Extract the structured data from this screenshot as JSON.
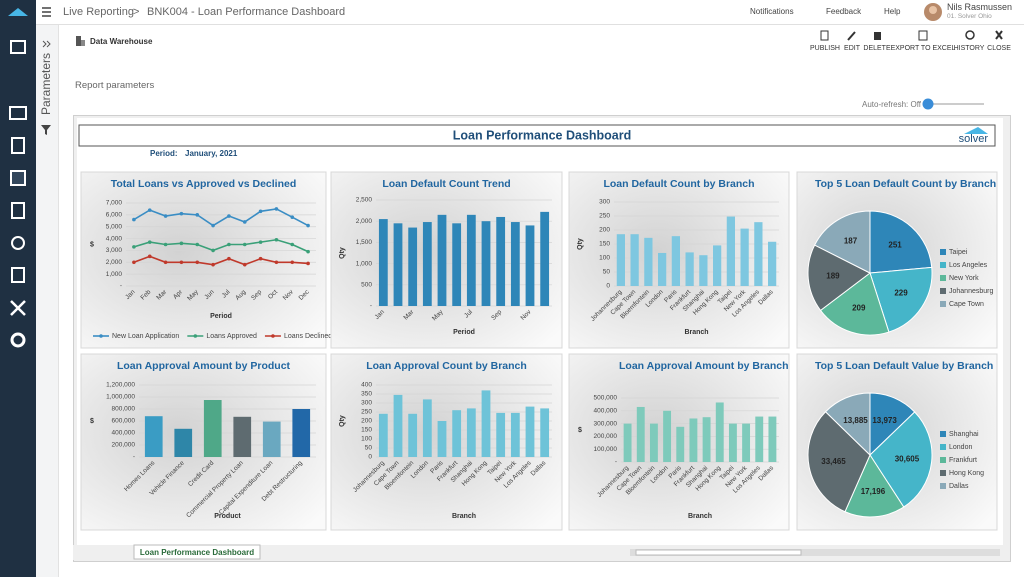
{
  "app": {
    "breadcrumb": [
      "Live Reporting",
      ">",
      "BNK004 - Loan Performance Dashboard"
    ],
    "notifications": "Notifications",
    "feedback": "Feedback",
    "help": "Help",
    "user_name": "Nils Rasmussen",
    "user_org": "01. Solver Ohio",
    "side_panel": "Parameters",
    "data_source": "Data Warehouse",
    "report_parameters": "Report parameters",
    "auto_refresh": "Auto-refresh: Off",
    "toolbar": [
      "PUBLISH",
      "EDIT",
      "DELETE",
      "EXPORT TO EXCEL",
      "HISTORY",
      "CLOSE"
    ],
    "dashboard_title": "Loan Performance Dashboard",
    "period_label": "Period:",
    "period_value": "January, 2021",
    "logo": "solver",
    "sheet_tab": "Loan Performance Dashboard"
  },
  "chart_data": [
    {
      "type": "line",
      "title": "Total Loans vs Approved vs Declined",
      "x_label": "Period",
      "y_label": "$",
      "categories": [
        "Jan",
        "Feb",
        "Mar",
        "Apr",
        "May",
        "Jun",
        "Jul",
        "Aug",
        "Sep",
        "Oct",
        "Nov",
        "Dec"
      ],
      "ylim": [
        0,
        7000
      ],
      "yticks": [
        {
          "value": 0,
          "label": "-"
        },
        {
          "value": 1000,
          "label": "1,000"
        },
        {
          "value": 2000,
          "label": "2,000"
        },
        {
          "value": 3000,
          "label": "3,000"
        },
        {
          "value": 4000,
          "label": "4,000"
        },
        {
          "value": 5000,
          "label": "5,000"
        },
        {
          "value": 6000,
          "label": "6,000"
        },
        {
          "value": 7000,
          "label": "7,000"
        }
      ],
      "grid": true,
      "legend": "bottom",
      "series": [
        {
          "name": "New Loan Application",
          "color": "#3a8dc4",
          "values": [
            5600,
            6400,
            5900,
            6100,
            6000,
            5100,
            5900,
            5400,
            6300,
            6500,
            5800,
            5100
          ]
        },
        {
          "name": "Loans Approved",
          "color": "#3aa078",
          "values": [
            3300,
            3700,
            3500,
            3600,
            3500,
            3000,
            3500,
            3500,
            3700,
            3900,
            3500,
            2900
          ]
        },
        {
          "name": "Loans Declined",
          "color": "#c0392b",
          "values": [
            2000,
            2500,
            2000,
            2000,
            2000,
            1800,
            2300,
            1800,
            2300,
            2000,
            2000,
            1900
          ]
        }
      ]
    },
    {
      "type": "bar",
      "title": "Loan Default Count Trend",
      "x_label": "Period",
      "y_label": "Qty",
      "categories": [
        "Jan",
        null,
        "Mar",
        null,
        "May",
        null,
        "Jul",
        null,
        "Sep",
        null,
        "Nov",
        null
      ],
      "values": [
        2050,
        1950,
        1850,
        1980,
        2150,
        1950,
        2150,
        2000,
        2100,
        1980,
        1900,
        2220
      ],
      "color": "#2e86b8",
      "ylim": [
        0,
        2500
      ],
      "yticks": [
        {
          "value": 0,
          "label": "-"
        },
        500,
        {
          "value": 1000,
          "label": "1,000"
        },
        {
          "value": 1500,
          "label": "1,500"
        },
        {
          "value": 2000,
          "label": "2,000"
        },
        {
          "value": 2500,
          "label": "2,500"
        }
      ],
      "grid": true
    },
    {
      "type": "bar",
      "title": "Loan Default Count by Branch",
      "x_label": "Branch",
      "y_label": "Qty",
      "categories": [
        "Johannesburg",
        "Cape Town",
        "Bloemfontein",
        "London",
        "Paris",
        "Frankfurt",
        "Shanghai",
        "Hong Kong",
        "Taipei",
        "New York",
        "Los Angeles",
        "Dallas"
      ],
      "values": [
        185,
        185,
        172,
        118,
        178,
        120,
        110,
        145,
        248,
        205,
        228,
        158
      ],
      "color": "#7ec7e0",
      "ylim": [
        0,
        300
      ],
      "yticks": [
        0,
        50,
        100,
        150,
        200,
        250,
        300
      ],
      "grid": true
    },
    {
      "type": "pie",
      "title": "Top 5 Loan Default Count by Branch",
      "legend": "right",
      "categories": [
        "Taipei",
        "Los Angeles",
        "New York",
        "Johannesburg",
        "Cape Town"
      ],
      "values": [
        251,
        229,
        209,
        189,
        187
      ],
      "colors": [
        "#2e86b8",
        "#45b5c9",
        "#5cb89a",
        "#5e6b70",
        "#8aa9b8"
      ]
    },
    {
      "type": "bar",
      "title": "Loan Approval Amount by Product",
      "x_label": "Product",
      "y_label": "$",
      "categories": [
        "Homes Loans",
        "Vehicle Finance",
        "Credit Card",
        "Commercial Property Loan",
        "Capital Expenditure Loan",
        "Debt Restructuring"
      ],
      "values": [
        680000,
        470000,
        950000,
        670000,
        590000,
        800000
      ],
      "colors": [
        "#3a9cc4",
        "#2e86a8",
        "#4fa888",
        "#5e6b70",
        "#6aa8c0",
        "#2268a8"
      ],
      "ylim": [
        0,
        1200000
      ],
      "yticks": [
        {
          "value": 0,
          "label": "-"
        },
        {
          "value": 200000,
          "label": "200,000"
        },
        {
          "value": 400000,
          "label": "400,000"
        },
        {
          "value": 600000,
          "label": "600,000"
        },
        {
          "value": 800000,
          "label": "800,000"
        },
        {
          "value": 1000000,
          "label": "1,000,000"
        },
        {
          "value": 1200000,
          "label": "1,200,000"
        }
      ],
      "grid": true
    },
    {
      "type": "bar",
      "title": "Loan Approval Count by Branch",
      "x_label": "Branch",
      "y_label": "Qty",
      "categories": [
        "Johannesburg",
        "Cape Town",
        "Bloemfontein",
        "London",
        "Paris",
        "Frankfurt",
        "Shanghai",
        "Hong Kong",
        "Taipei",
        "New York",
        "Los Angeles",
        "Dallas"
      ],
      "values": [
        240,
        345,
        240,
        320,
        200,
        260,
        270,
        370,
        245,
        245,
        280,
        270
      ],
      "color": "#6ec3d8",
      "ylim": [
        0,
        400
      ],
      "yticks": [
        0,
        50,
        100,
        150,
        200,
        250,
        300,
        350,
        400
      ],
      "grid": true
    },
    {
      "type": "bar",
      "title": "Loan Approval Amount by Branch",
      "x_label": "Branch",
      "y_label": "$",
      "categories": [
        "Johannesburg",
        "Cape Town",
        "Bloemfontein",
        "London",
        "Paris",
        "Frankfurt",
        "Shanghai",
        "Hong Kong",
        "Taipei",
        "New York",
        "Los Angeles",
        "Dallas"
      ],
      "values": [
        300000,
        430000,
        300000,
        400000,
        275000,
        340000,
        350000,
        465000,
        300000,
        300000,
        355000,
        355000
      ],
      "color": "#7ecabb",
      "ylim": [
        0,
        500000
      ],
      "yticks": [
        {
          "value": 0,
          "label": "-"
        },
        {
          "value": 100000,
          "label": "100,000"
        },
        {
          "value": 200000,
          "label": "200,000"
        },
        {
          "value": 300000,
          "label": "300,000"
        },
        {
          "value": 400000,
          "label": "400,000"
        },
        {
          "value": 500000,
          "label": "500,000"
        }
      ],
      "grid": true
    },
    {
      "type": "pie",
      "title": "Top 5 Loan Default Value by Branch",
      "legend": "right",
      "categories": [
        "Shanghai",
        "London",
        "Frankfurt",
        "Hong Kong",
        "Dallas"
      ],
      "values": [
        13973,
        30605,
        17196,
        33465,
        13885
      ],
      "value_labels": [
        "13,973",
        "30,605",
        "17,196",
        "33,465",
        "13,885"
      ],
      "colors": [
        "#2e86b8",
        "#45b5c9",
        "#5cb89a",
        "#5e6b70",
        "#8aa9b8"
      ]
    }
  ]
}
